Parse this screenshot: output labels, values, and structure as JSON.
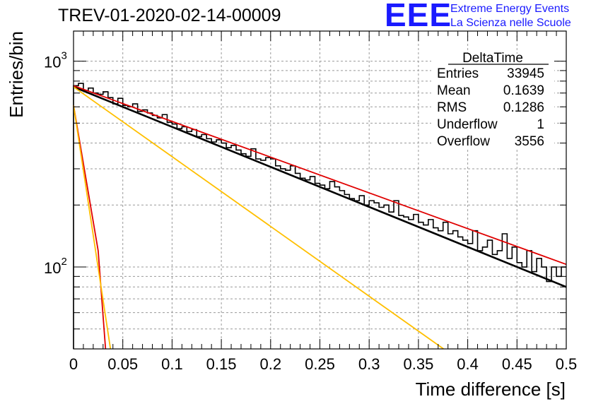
{
  "chart_data": {
    "type": "line",
    "title": "TREV-01-2020-02-14-00009",
    "xlabel": "Time difference [s]",
    "ylabel": "Entries/bin",
    "xlim": [
      0,
      0.5
    ],
    "ylim": [
      40,
      1400
    ],
    "yscale": "log",
    "grid": true,
    "x_ticks": [
      "0",
      "0.05",
      "0.1",
      "0.15",
      "0.2",
      "0.25",
      "0.3",
      "0.35",
      "0.4",
      "0.45",
      "0.5"
    ],
    "y_tick_labels": [
      {
        "value": 100,
        "base": "10",
        "exp": "2"
      },
      {
        "value": 1000,
        "base": "10",
        "exp": "3"
      }
    ],
    "stats_box": {
      "name": "DeltaTime",
      "rows": [
        {
          "label": "Entries",
          "value": "33945"
        },
        {
          "label": "Mean",
          "value": "0.1639"
        },
        {
          "label": "RMS",
          "value": "0.1286"
        },
        {
          "label": "Underflow",
          "value": "1"
        },
        {
          "label": "Overflow",
          "value": "3556"
        }
      ]
    },
    "histogram": {
      "color": "#000000",
      "bin_width": 0.005,
      "values": [
        760,
        780,
        720,
        740,
        700,
        690,
        710,
        665,
        620,
        660,
        610,
        600,
        620,
        570,
        580,
        560,
        545,
        530,
        550,
        505,
        495,
        470,
        480,
        455,
        465,
        430,
        440,
        420,
        405,
        415,
        400,
        380,
        390,
        370,
        355,
        345,
        375,
        335,
        330,
        340,
        335,
        310,
        300,
        295,
        310,
        285,
        270,
        265,
        275,
        255,
        250,
        240,
        260,
        245,
        235,
        225,
        215,
        210,
        222,
        200,
        210,
        205,
        195,
        200,
        185,
        210,
        178,
        175,
        170,
        180,
        165,
        160,
        170,
        155,
        150,
        165,
        145,
        150,
        140,
        135,
        130,
        150,
        120,
        125,
        135,
        115,
        120,
        145,
        110,
        125,
        105,
        100,
        120,
        95,
        110,
        100,
        85,
        100,
        90,
        100
      ]
    },
    "series": [
      {
        "color": "#000000",
        "points": [
          [
            0,
            750
          ],
          [
            0.5,
            80
          ]
        ]
      },
      {
        "color": "#e00000",
        "points": [
          [
            0,
            760
          ],
          [
            0.5,
            103
          ]
        ]
      },
      {
        "color": "#ffbf00",
        "points": [
          [
            0,
            750
          ],
          [
            0.3755,
            40
          ]
        ]
      },
      {
        "color": "#e00000",
        "points": [
          [
            0,
            610
          ],
          [
            0.025,
            120
          ],
          [
            0.0325,
            40
          ]
        ]
      },
      {
        "color": "#ffbf00",
        "points": [
          [
            0,
            610
          ],
          [
            0.0375,
            40
          ]
        ]
      }
    ]
  },
  "logo": {
    "mark": "EEE",
    "line1": "Extreme Energy Events",
    "line2": "La Scienza nelle Scuole",
    "color": "#1a1aff"
  }
}
